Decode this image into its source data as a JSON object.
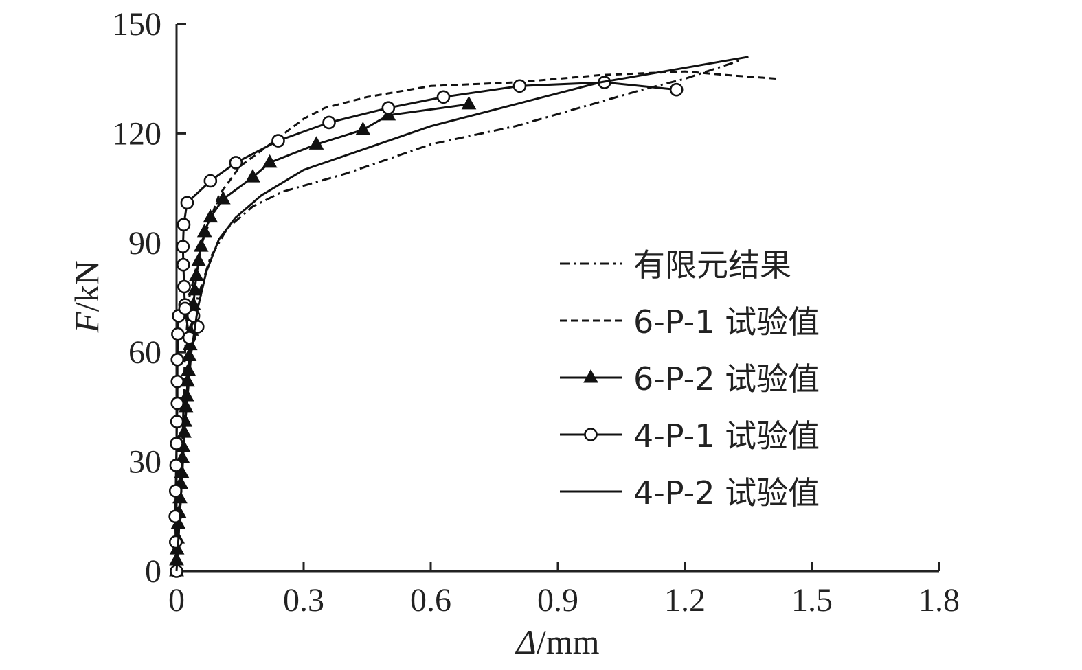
{
  "chart_data": {
    "type": "line",
    "title": "",
    "xlabel_italic": "Δ",
    "xlabel_rest": "/mm",
    "ylabel_italic": "F",
    "ylabel_rest": "/kN",
    "xlim": [
      0,
      1.8
    ],
    "ylim": [
      0,
      150
    ],
    "xticks": [
      "0",
      "0.3",
      "0.6",
      "0.9",
      "1.2",
      "1.5",
      "1.8"
    ],
    "yticks": [
      "0",
      "30",
      "60",
      "90",
      "120",
      "150"
    ],
    "grid": false,
    "legend_position": "right-center",
    "series": [
      {
        "name": "有限元结果",
        "style": "dashdot",
        "marker": "none",
        "points": [
          [
            0,
            0
          ],
          [
            0.01,
            20
          ],
          [
            0.02,
            40
          ],
          [
            0.03,
            60
          ],
          [
            0.05,
            75
          ],
          [
            0.08,
            86
          ],
          [
            0.12,
            94
          ],
          [
            0.18,
            100
          ],
          [
            0.25,
            104
          ],
          [
            0.4,
            109
          ],
          [
            0.6,
            117
          ],
          [
            0.8,
            122
          ],
          [
            0.95,
            127
          ],
          [
            1.1,
            132
          ],
          [
            1.2,
            135
          ],
          [
            1.33,
            140
          ]
        ]
      },
      {
        "name": "6-P-1 试验值",
        "style": "dashed",
        "marker": "none",
        "points": [
          [
            0,
            0
          ],
          [
            0.01,
            20
          ],
          [
            0.015,
            40
          ],
          [
            0.02,
            60
          ],
          [
            0.03,
            75
          ],
          [
            0.06,
            90
          ],
          [
            0.1,
            103
          ],
          [
            0.15,
            111
          ],
          [
            0.22,
            117
          ],
          [
            0.3,
            124
          ],
          [
            0.35,
            127
          ],
          [
            0.45,
            130
          ],
          [
            0.6,
            133
          ],
          [
            0.8,
            134
          ],
          [
            1.0,
            136
          ],
          [
            1.2,
            137
          ],
          [
            1.3,
            136
          ],
          [
            1.42,
            135
          ]
        ]
      },
      {
        "name": "6-P-2 试验值",
        "style": "solid",
        "marker": "triangle",
        "points": [
          [
            0,
            0
          ],
          [
            0,
            3
          ],
          [
            0.001,
            6
          ],
          [
            0.002,
            9
          ],
          [
            0.004,
            13
          ],
          [
            0.006,
            16
          ],
          [
            0.008,
            20
          ],
          [
            0.01,
            24
          ],
          [
            0.012,
            27
          ],
          [
            0.014,
            31
          ],
          [
            0.016,
            34
          ],
          [
            0.018,
            38
          ],
          [
            0.02,
            41
          ],
          [
            0.022,
            45
          ],
          [
            0.024,
            48
          ],
          [
            0.026,
            52
          ],
          [
            0.028,
            55
          ],
          [
            0.03,
            59
          ],
          [
            0.032,
            62
          ],
          [
            0.035,
            66
          ],
          [
            0.038,
            70
          ],
          [
            0.04,
            73
          ],
          [
            0.043,
            77
          ],
          [
            0.047,
            81
          ],
          [
            0.052,
            85
          ],
          [
            0.058,
            89
          ],
          [
            0.066,
            93
          ],
          [
            0.08,
            97
          ],
          [
            0.11,
            102
          ],
          [
            0.18,
            108
          ],
          [
            0.22,
            112
          ],
          [
            0.33,
            117
          ],
          [
            0.44,
            121
          ],
          [
            0.5,
            125
          ],
          [
            0.69,
            128
          ]
        ]
      },
      {
        "name": "4-P-1 试验值",
        "style": "solid",
        "marker": "circle",
        "points": [
          [
            0,
            0
          ],
          [
            -0.002,
            8
          ],
          [
            -0.003,
            15
          ],
          [
            -0.002,
            22
          ],
          [
            -0.001,
            29
          ],
          [
            0,
            35
          ],
          [
            0.001,
            41
          ],
          [
            0.002,
            46
          ],
          [
            0.002,
            52
          ],
          [
            0.002,
            58
          ],
          [
            0.003,
            65
          ],
          [
            0.005,
            70
          ],
          [
            0.02,
            73
          ],
          [
            0.04,
            70
          ],
          [
            0.05,
            67
          ],
          [
            0.03,
            64
          ],
          [
            0.02,
            72
          ],
          [
            0.018,
            78
          ],
          [
            0.016,
            84
          ],
          [
            0.015,
            89
          ],
          [
            0.017,
            95
          ],
          [
            0.025,
            101
          ],
          [
            0.08,
            107
          ],
          [
            0.14,
            112
          ],
          [
            0.24,
            118
          ],
          [
            0.36,
            123
          ],
          [
            0.5,
            127
          ],
          [
            0.63,
            130
          ],
          [
            0.81,
            133
          ],
          [
            1.01,
            134
          ],
          [
            1.18,
            132
          ]
        ]
      },
      {
        "name": "4-P-2 试验值",
        "style": "solid",
        "marker": "none",
        "points": [
          [
            0,
            0
          ],
          [
            0.01,
            20
          ],
          [
            0.02,
            40
          ],
          [
            0.035,
            60
          ],
          [
            0.05,
            72
          ],
          [
            0.07,
            82
          ],
          [
            0.1,
            91
          ],
          [
            0.14,
            97
          ],
          [
            0.2,
            103
          ],
          [
            0.3,
            110
          ],
          [
            0.45,
            116
          ],
          [
            0.6,
            122
          ],
          [
            0.8,
            128
          ],
          [
            1.0,
            134
          ],
          [
            1.2,
            138
          ],
          [
            1.35,
            141
          ]
        ]
      }
    ]
  }
}
